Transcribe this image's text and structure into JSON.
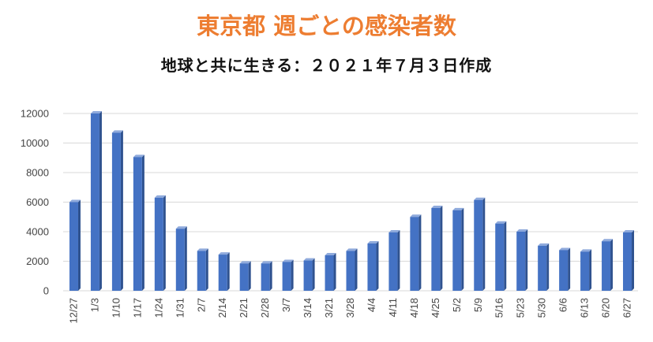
{
  "chart_data": {
    "type": "bar",
    "title": "東京都 週ごとの感染者数",
    "subtitle": "地球と共に生きる：２０２１年７月３日作成",
    "xlabel": "",
    "ylabel": "",
    "ylim": [
      0,
      12000
    ],
    "yticks": [
      0,
      2000,
      4000,
      6000,
      8000,
      10000,
      12000
    ],
    "grid": true,
    "legend": "none",
    "bar_color": "#4472C4",
    "bar_side_color": "#2F528F",
    "bar_top_color": "#8FAADC",
    "categories": [
      "12/27",
      "1/3",
      "1/10",
      "1/17",
      "1/24",
      "1/31",
      "2/7",
      "2/14",
      "2/21",
      "2/28",
      "3/7",
      "3/14",
      "3/21",
      "3/28",
      "4/4",
      "4/11",
      "4/18",
      "4/25",
      "5/2",
      "5/9",
      "5/16",
      "5/23",
      "5/30",
      "6/6",
      "6/13",
      "6/20",
      "6/27"
    ],
    "values": [
      6000,
      12000,
      10700,
      9050,
      6300,
      4200,
      2700,
      2450,
      1850,
      1850,
      1950,
      2050,
      2400,
      2700,
      3200,
      3950,
      5000,
      5600,
      5450,
      6150,
      4550,
      4000,
      3050,
      2750,
      2650,
      3350,
      3950
    ]
  }
}
